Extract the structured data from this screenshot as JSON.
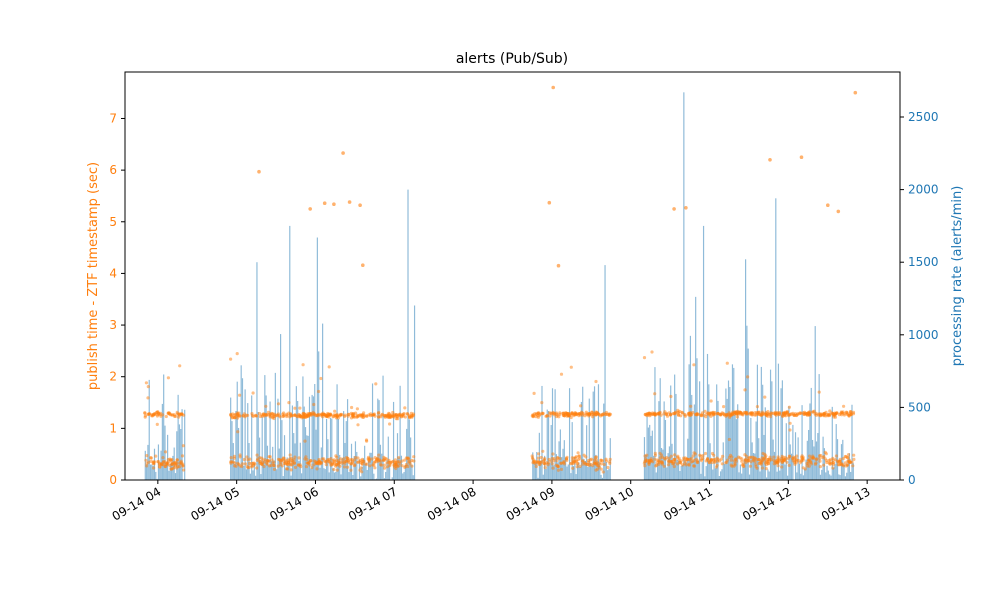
{
  "chart_data": {
    "type": "bar+scatter",
    "title": "alerts (Pub/Sub)",
    "xlabel": "",
    "x_range": [
      "2023-09-14 03:35",
      "2023-09-14 13:25"
    ],
    "x_ticks": [
      "09-14 04",
      "09-14 05",
      "09-14 06",
      "09-14 07",
      "09-14 08",
      "09-14 09",
      "09-14 10",
      "09-14 11",
      "09-14 12",
      "09-14 13"
    ],
    "left_axis": {
      "label": "publish time - ZTF timestamp (sec)",
      "range": [
        0,
        7.9
      ],
      "ticks": [
        "0",
        "1",
        "2",
        "3",
        "4",
        "5",
        "6",
        "7"
      ],
      "color": "#ff7f0e"
    },
    "right_axis": {
      "label": "processing rate (alerts/min)",
      "range": [
        0,
        2810
      ],
      "ticks": [
        "0",
        "500",
        "1000",
        "1500",
        "2000",
        "2500"
      ],
      "color": "#1f77b4"
    },
    "colors": {
      "scatter": "#ff7f0e",
      "bars": "#1f77b4"
    },
    "active_windows": [
      {
        "start": "03:50",
        "end": "04:20",
        "level_high": 1.27,
        "level_low": 0.33
      },
      {
        "start": "04:55",
        "end": "07:15",
        "level_high": 1.25,
        "level_low": 0.35
      },
      {
        "start": "08:45",
        "end": "09:45",
        "level_high": 1.27,
        "level_low": 0.35
      },
      {
        "start": "10:10",
        "end": "12:50",
        "level_high": 1.28,
        "level_low": 0.38
      }
    ],
    "outliers": [
      {
        "time": "05:17",
        "value": 5.97
      },
      {
        "time": "05:56",
        "value": 5.25
      },
      {
        "time": "06:07",
        "value": 5.36
      },
      {
        "time": "06:14",
        "value": 5.34
      },
      {
        "time": "06:21",
        "value": 6.33
      },
      {
        "time": "06:26",
        "value": 5.38
      },
      {
        "time": "06:34",
        "value": 5.32
      },
      {
        "time": "06:36",
        "value": 4.16
      },
      {
        "time": "08:58",
        "value": 5.37
      },
      {
        "time": "09:01",
        "value": 7.6
      },
      {
        "time": "09:05",
        "value": 4.15
      },
      {
        "time": "10:33",
        "value": 5.25
      },
      {
        "time": "10:42",
        "value": 5.27
      },
      {
        "time": "11:46",
        "value": 6.2
      },
      {
        "time": "12:10",
        "value": 6.25
      },
      {
        "time": "12:30",
        "value": 5.32
      },
      {
        "time": "12:38",
        "value": 5.2
      },
      {
        "time": "12:51",
        "value": 7.5
      }
    ],
    "rate_peaks": [
      {
        "time": "05:15",
        "value": 1500
      },
      {
        "time": "05:40",
        "value": 1750
      },
      {
        "time": "06:01",
        "value": 1670
      },
      {
        "time": "07:10",
        "value": 2000
      },
      {
        "time": "09:40",
        "value": 1480
      },
      {
        "time": "10:40",
        "value": 2670
      },
      {
        "time": "10:55",
        "value": 1750
      },
      {
        "time": "11:27",
        "value": 1520
      },
      {
        "time": "11:50",
        "value": 1940
      },
      {
        "time": "12:20",
        "value": 1060
      }
    ]
  }
}
